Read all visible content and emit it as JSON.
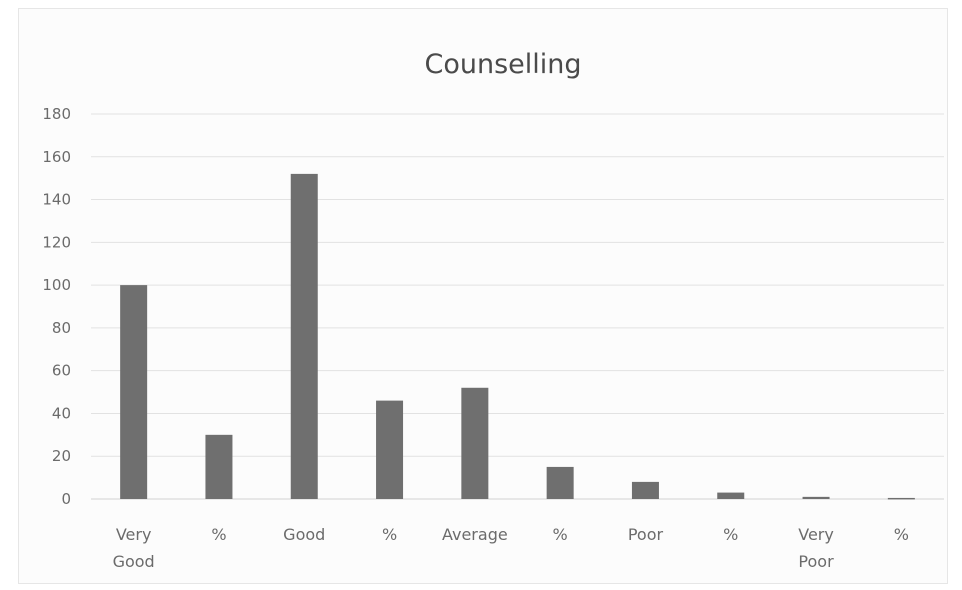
{
  "chart_data": {
    "type": "bar",
    "title": "Counselling",
    "xlabel": "",
    "ylabel": "",
    "ylim": [
      0,
      180
    ],
    "y_ticks": [
      0,
      20,
      40,
      60,
      80,
      100,
      120,
      140,
      160,
      180
    ],
    "grid": true,
    "legend": "none",
    "bar_color": "#6f6f6f",
    "categories": [
      "Very Good",
      "%",
      "Good",
      "%",
      "Average",
      "%",
      "Poor",
      "%",
      "Very Poor",
      "%"
    ],
    "category_lines": [
      [
        "Very",
        "Good"
      ],
      [
        "%"
      ],
      [
        "Good"
      ],
      [
        "%"
      ],
      [
        "Average"
      ],
      [
        "%"
      ],
      [
        "Poor"
      ],
      [
        "%"
      ],
      [
        "Very",
        "Poor"
      ],
      [
        "%"
      ]
    ],
    "values": [
      100,
      30,
      152,
      46,
      52,
      15,
      8,
      3,
      1,
      0.5
    ]
  }
}
